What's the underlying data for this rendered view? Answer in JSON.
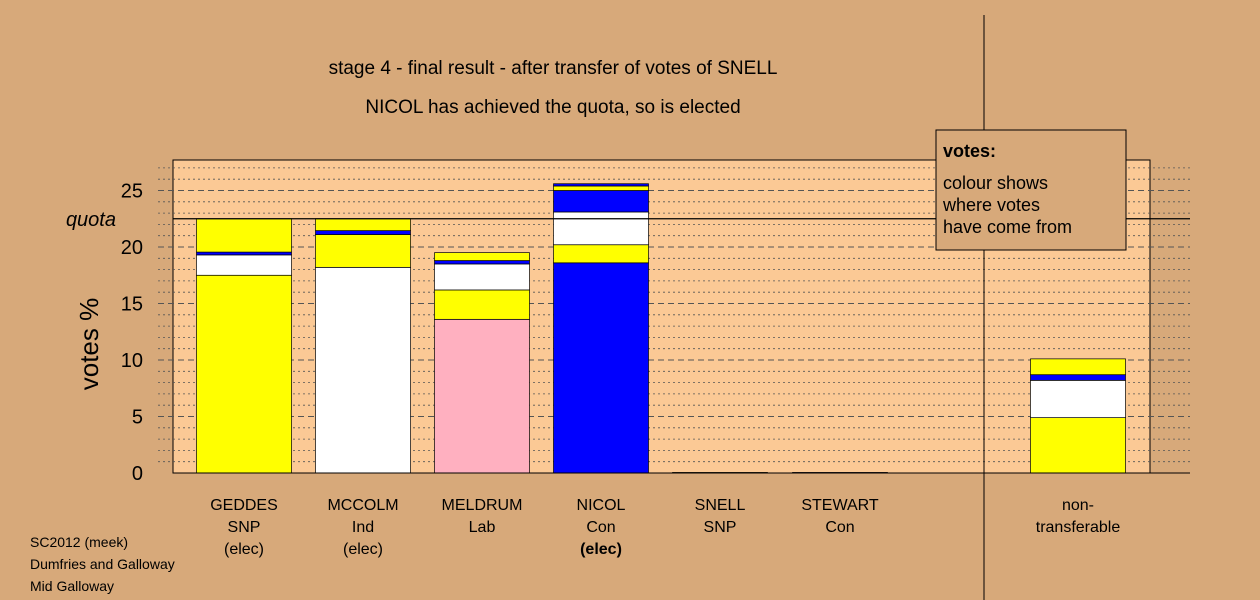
{
  "colors": {
    "background": "#d7a97a",
    "plot_background": "#fbc995",
    "SNP": "#ffff00",
    "Ind": "#ffffff",
    "Lab": "#ffb0c0",
    "Con": "#0000ff",
    "border": "#000000"
  },
  "chart_data": {
    "type": "bar",
    "stacked": true,
    "title": "stage 4 - final result - after transfer of votes of SNELL",
    "subtitle": "NICOL has achieved the quota, so is elected",
    "ylabel": "votes %",
    "ylim": [
      0,
      27.5
    ],
    "yticks": [
      "0",
      "5",
      "10",
      "15",
      "20",
      "25"
    ],
    "quota": {
      "label": "quota",
      "value": 22.5
    },
    "grid": true,
    "legend": {
      "title": "votes:",
      "lines": [
        "colour shows",
        "where votes",
        "have come from"
      ]
    },
    "categories": [
      {
        "lines": [
          "GEDDES",
          "SNP",
          "(elec)"
        ],
        "bold": [
          false,
          false,
          false
        ]
      },
      {
        "lines": [
          "MCCOLM",
          "Ind",
          "(elec)"
        ],
        "bold": [
          false,
          false,
          false
        ]
      },
      {
        "lines": [
          "MELDRUM",
          "Lab"
        ],
        "bold": [
          false,
          false
        ]
      },
      {
        "lines": [
          "NICOL",
          "Con",
          "(elec)"
        ],
        "bold": [
          false,
          false,
          true
        ]
      },
      {
        "lines": [
          "SNELL",
          "SNP"
        ],
        "bold": [
          false,
          false
        ]
      },
      {
        "lines": [
          "STEWART",
          "Con"
        ],
        "bold": [
          false,
          false
        ]
      },
      {
        "lines": [
          "non-",
          "transferable"
        ],
        "bold": [
          false,
          false
        ]
      }
    ],
    "stacks": [
      [
        {
          "color": "SNP",
          "value": 17.5
        },
        {
          "color": "Ind",
          "value": 1.8
        },
        {
          "color": "Con",
          "value": 0.25
        },
        {
          "color": "SNP",
          "value": 2.95
        }
      ],
      [
        {
          "color": "Ind",
          "value": 18.2
        },
        {
          "color": "SNP",
          "value": 2.9
        },
        {
          "color": "Con",
          "value": 0.35
        },
        {
          "color": "SNP",
          "value": 1.05
        }
      ],
      [
        {
          "color": "Lab",
          "value": 13.6
        },
        {
          "color": "SNP",
          "value": 2.6
        },
        {
          "color": "Ind",
          "value": 2.3
        },
        {
          "color": "Con",
          "value": 0.3
        },
        {
          "color": "SNP",
          "value": 0.7
        }
      ],
      [
        {
          "color": "Con",
          "value": 18.6
        },
        {
          "color": "SNP",
          "value": 1.6
        },
        {
          "color": "Ind",
          "value": 2.9
        },
        {
          "color": "Con",
          "value": 1.9
        },
        {
          "color": "SNP",
          "value": 0.4
        },
        {
          "color": "Con",
          "value": 0.2
        }
      ],
      [
        {
          "color": "SNP",
          "value": 0.05
        }
      ],
      [
        {
          "color": "Con",
          "value": 0.05
        }
      ],
      [
        {
          "color": "SNP",
          "value": 4.9
        },
        {
          "color": "Ind",
          "value": 3.3
        },
        {
          "color": "Con",
          "value": 0.5
        },
        {
          "color": "SNP",
          "value": 1.4
        }
      ]
    ]
  },
  "footer": {
    "lines": [
      "SC2012 (meek)",
      "Dumfries and Galloway",
      "Mid Galloway"
    ]
  }
}
